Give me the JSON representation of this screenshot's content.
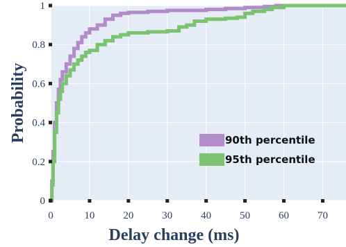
{
  "chart_data": {
    "type": "line",
    "xlabel": "Delay change (ms)",
    "ylabel": "Probability",
    "xlim": [
      0,
      76
    ],
    "ylim": [
      0,
      1
    ],
    "x_ticks": [
      "0",
      "10",
      "20",
      "30",
      "40",
      "50",
      "60",
      "70"
    ],
    "y_ticks": [
      "0",
      "0.2",
      "0.4",
      "0.6",
      "0.8",
      "1"
    ],
    "grid": true,
    "legend_position": "bottom-right",
    "series": [
      {
        "name": "90th percentile",
        "color": "#b28cc9",
        "points": [
          [
            0,
            0
          ],
          [
            0.3,
            0.1
          ],
          [
            0.6,
            0.25
          ],
          [
            1,
            0.4
          ],
          [
            1.5,
            0.5
          ],
          [
            2,
            0.57
          ],
          [
            2.5,
            0.62
          ],
          [
            3,
            0.66
          ],
          [
            4,
            0.7
          ],
          [
            5,
            0.74
          ],
          [
            6,
            0.78
          ],
          [
            7,
            0.81
          ],
          [
            8,
            0.84
          ],
          [
            9,
            0.86
          ],
          [
            10,
            0.88
          ],
          [
            12,
            0.9
          ],
          [
            14,
            0.93
          ],
          [
            16,
            0.95
          ],
          [
            18,
            0.96
          ],
          [
            20,
            0.965
          ],
          [
            25,
            0.97
          ],
          [
            30,
            0.975
          ],
          [
            35,
            0.975
          ],
          [
            40,
            0.98
          ],
          [
            45,
            0.985
          ],
          [
            50,
            0.99
          ],
          [
            55,
            0.995
          ],
          [
            58,
            1
          ],
          [
            76,
            1
          ]
        ]
      },
      {
        "name": "95th percentile",
        "color": "#7cc371",
        "points": [
          [
            0,
            0
          ],
          [
            0.3,
            0.08
          ],
          [
            0.6,
            0.2
          ],
          [
            1,
            0.35
          ],
          [
            1.5,
            0.45
          ],
          [
            2,
            0.52
          ],
          [
            2.5,
            0.56
          ],
          [
            3,
            0.6
          ],
          [
            4,
            0.64
          ],
          [
            5,
            0.67
          ],
          [
            6,
            0.7
          ],
          [
            7,
            0.72
          ],
          [
            8,
            0.74
          ],
          [
            9,
            0.76
          ],
          [
            10,
            0.77
          ],
          [
            12,
            0.8
          ],
          [
            14,
            0.82
          ],
          [
            16,
            0.84
          ],
          [
            18,
            0.85
          ],
          [
            20,
            0.86
          ],
          [
            22,
            0.86
          ],
          [
            25,
            0.865
          ],
          [
            30,
            0.87
          ],
          [
            33,
            0.89
          ],
          [
            35,
            0.9
          ],
          [
            37,
            0.92
          ],
          [
            40,
            0.93
          ],
          [
            45,
            0.935
          ],
          [
            48,
            0.94
          ],
          [
            50,
            0.96
          ],
          [
            52,
            0.97
          ],
          [
            55,
            0.98
          ],
          [
            57,
            0.99
          ],
          [
            60,
            1
          ],
          [
            76,
            1
          ]
        ]
      }
    ]
  }
}
